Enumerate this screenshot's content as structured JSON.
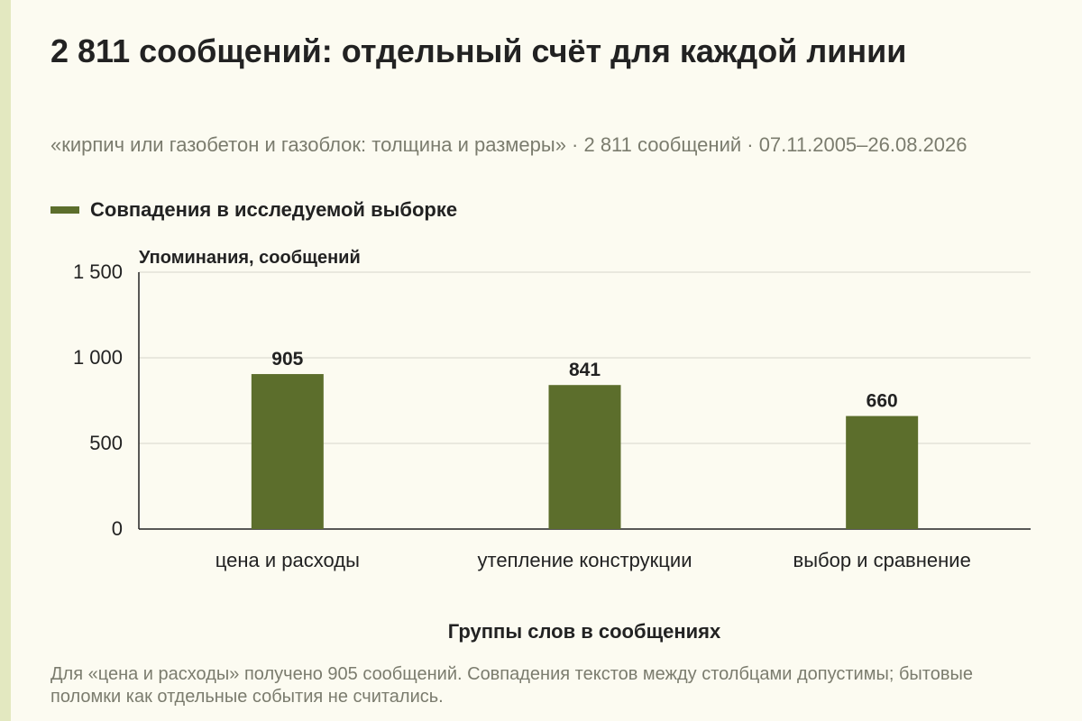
{
  "title": "2 811 сообщений: отдельный счёт для каждой линии",
  "subtitle": "«кирпич или газобетон и газоблок: толщина и размеры» · 2 811 сообщений · 07.11.2005–26.08.2026",
  "note": "Для «цена и расходы» получено 905 сообщений. Совпадения текстов между столбцами допустимы; бытовые поломки как отдельные события не считались.",
  "colors": {
    "bar": "#5c6e2c",
    "grid": "#d6d6cc",
    "axis": "#222222",
    "background": "#fcfbf1",
    "muted_text": "#7b7c6e"
  },
  "chart_data": {
    "type": "bar",
    "categories": [
      "цена и расходы",
      "утепление конструкции",
      "выбор и сравнение"
    ],
    "series": [
      {
        "name": "Совпадения в исследуемой выборке",
        "values": [
          905,
          841,
          660
        ]
      }
    ],
    "value_labels": [
      "905",
      "841",
      "660"
    ],
    "ylabel": "Упоминания, сообщений",
    "xlabel": "Группы слов в сообщениях",
    "ylim": [
      0,
      1500
    ],
    "yticks": [
      0,
      500,
      1000,
      1500
    ],
    "ytick_labels": [
      "0",
      "500",
      "1 000",
      "1 500"
    ],
    "grid": true,
    "legend": "top-left"
  }
}
